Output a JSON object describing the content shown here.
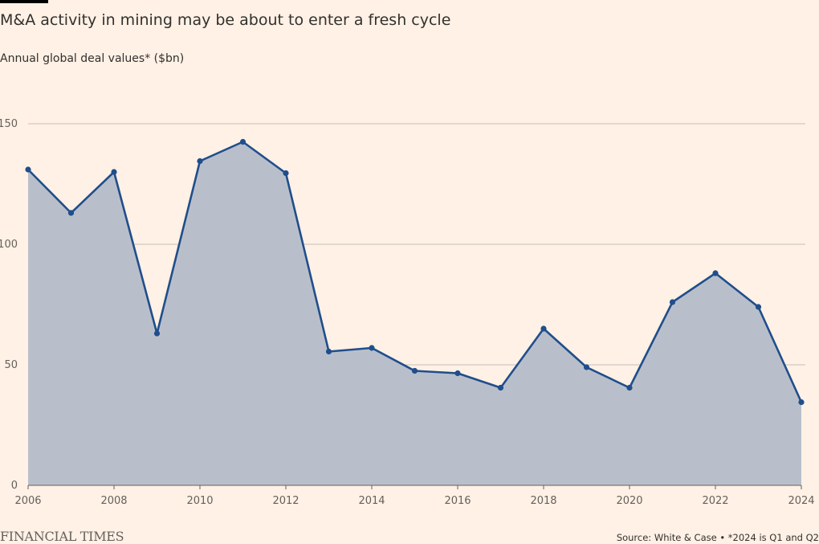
{
  "header": {
    "title": "M&A activity in mining may be about to enter a fresh cycle",
    "subtitle": "Annual global deal values* ($bn)"
  },
  "footer": {
    "brand": "FINANCIAL TIMES",
    "source": "Source: White & Case • *2024 is Q1 and Q2"
  },
  "colors": {
    "background": "#FFF1E5",
    "line": "#1F4E8C",
    "area": "#B9BFCA",
    "grid": "#C7C0B9"
  },
  "chart_data": {
    "type": "area",
    "title": "M&A activity in mining may be about to enter a fresh cycle",
    "subtitle": "Annual global deal values* ($bn)",
    "xlabel": "",
    "ylabel": "",
    "x": [
      2006,
      2007,
      2008,
      2009,
      2010,
      2011,
      2012,
      2013,
      2014,
      2015,
      2016,
      2017,
      2018,
      2019,
      2020,
      2021,
      2022,
      2023,
      2024
    ],
    "series": [
      {
        "name": "",
        "values": [
          131,
          113,
          130,
          63,
          134.5,
          142.5,
          129.5,
          55.5,
          57,
          47.5,
          46.5,
          40.5,
          65,
          49,
          40.5,
          76,
          88,
          74,
          34.5
        ]
      }
    ],
    "ylim": [
      0,
      150
    ],
    "xlim": [
      2006,
      2024
    ],
    "yticks": [
      0,
      50,
      100,
      150
    ],
    "xticks": [
      2006,
      2008,
      2010,
      2012,
      2014,
      2016,
      2018,
      2020,
      2022,
      2024
    ],
    "grid": true,
    "legend": "none"
  }
}
